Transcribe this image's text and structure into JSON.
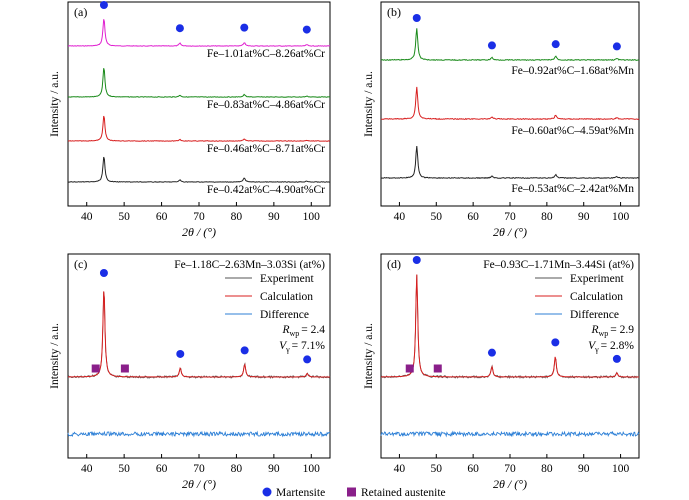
{
  "colors": {
    "magenta": "#e020d0",
    "green": "#1a8a1a",
    "red": "#d81f1f",
    "black": "#222222",
    "blue_fit": "#2c7fd6",
    "martensite": "#1a2ee6",
    "austenite": "#8a1f8a"
  },
  "legend": {
    "martensite": "Martensite",
    "austenite": "Retained austenite"
  },
  "chart_data": [
    {
      "type": "line",
      "panel": "(a)",
      "xlabel": "2θ / (°)",
      "ylabel": "Intensity / a.u.",
      "xlim": [
        35,
        105
      ],
      "xticks": [
        40,
        50,
        60,
        70,
        80,
        90,
        100
      ],
      "series": [
        {
          "name": "Fe–1.01at%C–8.26at%Cr",
          "color": "#e020d0",
          "peaks": [
            [
              44.6,
              1.0
            ],
            [
              64.9,
              0.1
            ],
            [
              82.1,
              0.12
            ],
            [
              98.8,
              0.05
            ]
          ],
          "markers": [
            44.6,
            64.9,
            82.1,
            98.8
          ]
        },
        {
          "name": "Fe–0.83at%C–4.86at%Cr",
          "color": "#1a8a1a",
          "peaks": [
            [
              44.6,
              1.0
            ],
            [
              64.9,
              0.06
            ],
            [
              82.1,
              0.08
            ],
            [
              98.8,
              0.03
            ]
          ]
        },
        {
          "name": "Fe–0.46at%C–8.71at%Cr",
          "color": "#d81f1f",
          "peaks": [
            [
              44.6,
              1.0
            ],
            [
              64.9,
              0.06
            ],
            [
              82.1,
              0.08
            ],
            [
              98.8,
              0.03
            ]
          ]
        },
        {
          "name": "Fe–0.42at%C–4.90at%Cr",
          "color": "#222222",
          "peaks": [
            [
              44.6,
              1.0
            ],
            [
              64.9,
              0.08
            ],
            [
              82.1,
              0.16
            ],
            [
              98.8,
              0.04
            ]
          ]
        }
      ]
    },
    {
      "type": "line",
      "panel": "(b)",
      "xlabel": "2θ / (°)",
      "ylabel": "Intensity / a.u.",
      "xlim": [
        35,
        105
      ],
      "xticks": [
        40,
        50,
        60,
        70,
        80,
        90,
        100
      ],
      "series": [
        {
          "name": "Fe–0.92at%C–1.68at%Mn",
          "color": "#1a8a1a",
          "peaks": [
            [
              44.7,
              1.0
            ],
            [
              65.1,
              0.08
            ],
            [
              82.4,
              0.12
            ],
            [
              99.0,
              0.05
            ]
          ],
          "markers": [
            44.7,
            65.1,
            82.4,
            99.0
          ]
        },
        {
          "name": "Fe–0.60at%C–4.59at%Mn",
          "color": "#d81f1f",
          "peaks": [
            [
              44.7,
              1.0
            ],
            [
              65.1,
              0.07
            ],
            [
              82.4,
              0.12
            ],
            [
              99.0,
              0.04
            ]
          ]
        },
        {
          "name": "Fe–0.53at%C–2.42at%Mn",
          "color": "#222222",
          "peaks": [
            [
              44.7,
              1.0
            ],
            [
              65.1,
              0.06
            ],
            [
              82.4,
              0.1
            ],
            [
              99.0,
              0.04
            ]
          ]
        }
      ]
    },
    {
      "type": "line",
      "panel": "(c)",
      "title": "Fe–1.18C–2.63Mn–3.03Si (at%)",
      "xlabel": "2θ / (°)",
      "ylabel": "Intensity / a.u.",
      "xlim": [
        35,
        105
      ],
      "xticks": [
        40,
        50,
        60,
        70,
        80,
        90,
        100
      ],
      "legend_entries": [
        "Experiment",
        "Calculation",
        "Difference"
      ],
      "stats": {
        "rwp_label": "R",
        "rwp_sub": "wp",
        "rwp_value": "= 2.4",
        "v_label": "V",
        "v_sub": "γ",
        "v_value": "= 7.1%"
      },
      "peaks": [
        [
          44.6,
          1.0
        ],
        [
          65.0,
          0.1
        ],
        [
          82.2,
          0.14
        ],
        [
          98.9,
          0.04
        ]
      ],
      "martensite_markers": [
        44.6,
        65.0,
        82.2,
        98.9
      ],
      "austenite_markers": [
        42.4,
        50.2
      ]
    },
    {
      "type": "line",
      "panel": "(d)",
      "title": "Fe–0.93C–1.71Mn–3.44Si (at%)",
      "xlabel": "2θ / (°)",
      "ylabel": "Intensity / a.u.",
      "xlim": [
        35,
        105
      ],
      "xticks": [
        40,
        50,
        60,
        70,
        80,
        90,
        100
      ],
      "legend_entries": [
        "Experiment",
        "Calculation",
        "Difference"
      ],
      "stats": {
        "rwp_label": "R",
        "rwp_sub": "wp",
        "rwp_value": "= 2.9",
        "v_label": "V",
        "v_sub": "γ",
        "v_value": "= 2.8%"
      },
      "peaks": [
        [
          44.7,
          1.0
        ],
        [
          65.1,
          0.1
        ],
        [
          82.3,
          0.2
        ],
        [
          99.0,
          0.04
        ]
      ],
      "martensite_markers": [
        44.7,
        65.1,
        82.3,
        99.0
      ],
      "austenite_markers": [
        42.8,
        50.4
      ]
    }
  ]
}
